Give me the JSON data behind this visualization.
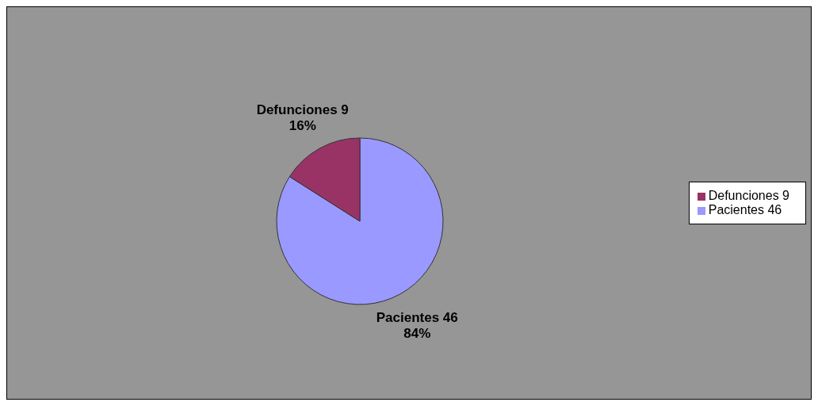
{
  "chart_data": {
    "type": "pie",
    "categories": [
      "Pacientes 46",
      "Defunciones 9"
    ],
    "values": [
      84,
      16
    ],
    "colors": [
      "#9999ff",
      "#993366"
    ],
    "value_labels": [
      "84%",
      "16%"
    ],
    "legend": "right"
  }
}
